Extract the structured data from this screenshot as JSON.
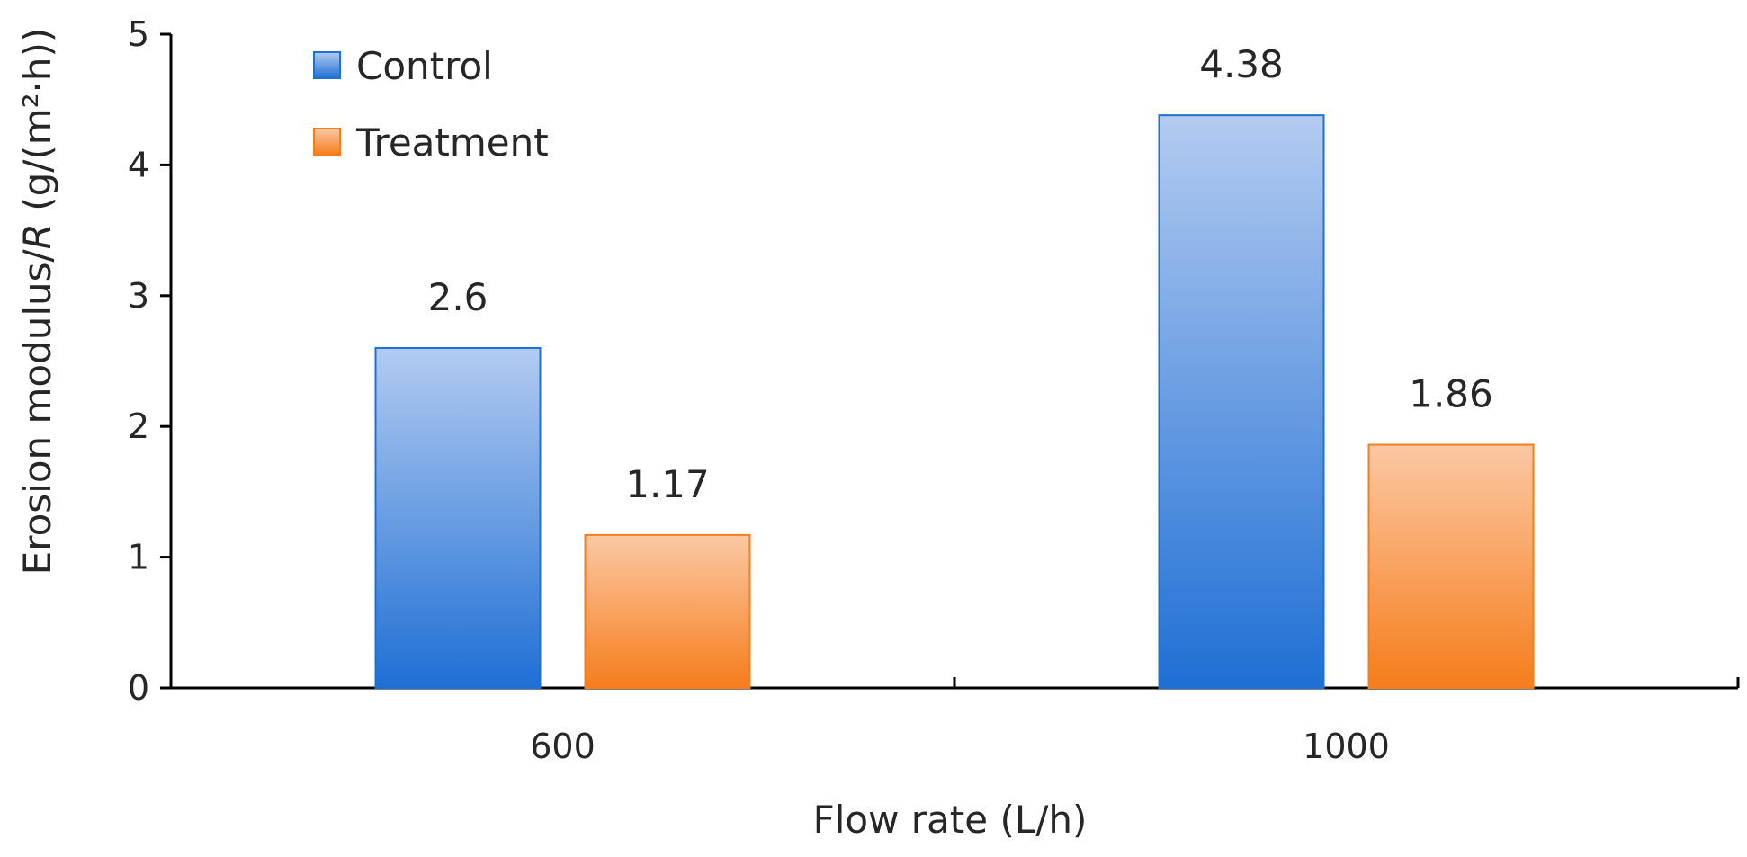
{
  "chart_data": {
    "type": "bar",
    "categories": [
      "600",
      "1000"
    ],
    "series": [
      {
        "name": "Control",
        "values": [
          2.6,
          4.38
        ],
        "labels": [
          "2.6",
          "4.38"
        ],
        "color": "#2f7bd9"
      },
      {
        "name": "Treatment",
        "values": [
          1.17,
          1.86
        ],
        "labels": [
          "1.17",
          "1.86"
        ],
        "color": "#f58a2e"
      }
    ],
    "xlabel": "Flow rate (L/h)",
    "ylabel": {
      "prefix": "Erosion modulus/",
      "symbol": "R",
      "unit": " (g/(m²·h))"
    },
    "ylim": [
      0,
      5
    ],
    "yticks": [
      "0",
      "1",
      "2",
      "3",
      "4",
      "5"
    ],
    "grid": false,
    "legend_position": "top-left"
  }
}
